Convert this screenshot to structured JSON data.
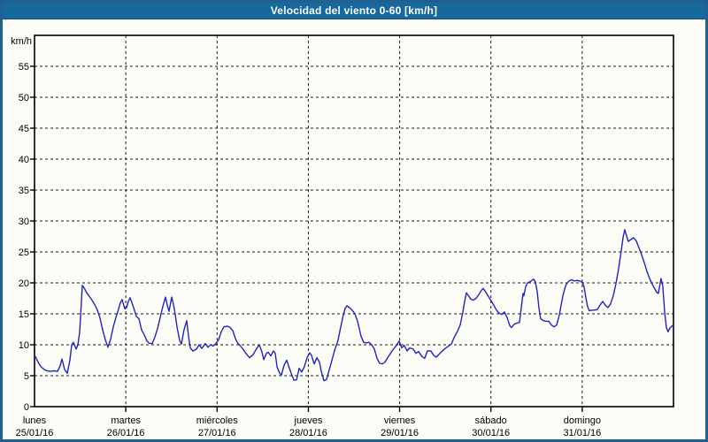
{
  "title_bar": {
    "title": "Velocidad del viento 0-60 [km/h]"
  },
  "colors": {
    "frame_border": "#20608f",
    "title_bar_bg": "#17689d",
    "background": "#fcfdf6",
    "grid": "#1a1a1a",
    "axis_box": "#000000",
    "line": "#2222c4"
  },
  "chart_data": {
    "type": "line",
    "title": "Velocidad del viento 0-60 [km/h]",
    "y_unit_label": "km/h",
    "ylabel": "km/h",
    "xlabel": "",
    "ylim": [
      0,
      60
    ],
    "y_ticks": [
      0,
      5,
      10,
      15,
      20,
      25,
      30,
      35,
      40,
      45,
      50,
      55
    ],
    "grid": "dashed",
    "legend": "none",
    "x_range_days": [
      0,
      7
    ],
    "x_days": [
      {
        "label": "lunes",
        "date": "25/01/16"
      },
      {
        "label": "martes",
        "date": "26/01/16"
      },
      {
        "label": "miércoles",
        "date": "27/01/16"
      },
      {
        "label": "jueves",
        "date": "28/01/16"
      },
      {
        "label": "viernes",
        "date": "29/01/16"
      },
      {
        "label": "sábado",
        "date": "30/01/16"
      },
      {
        "label": "domingo",
        "date": "31/01/16"
      }
    ],
    "series_name": "Velocidad del viento",
    "points": [
      [
        0.01,
        8.1
      ],
      [
        0.039,
        7.2
      ],
      [
        0.068,
        6.5
      ],
      [
        0.107,
        6.0
      ],
      [
        0.136,
        5.8
      ],
      [
        0.175,
        5.7
      ],
      [
        0.213,
        5.8
      ],
      [
        0.252,
        5.7
      ],
      [
        0.281,
        6.6
      ],
      [
        0.301,
        7.7
      ],
      [
        0.33,
        6.0
      ],
      [
        0.359,
        5.4
      ],
      [
        0.388,
        7.5
      ],
      [
        0.407,
        10.0
      ],
      [
        0.427,
        10.4
      ],
      [
        0.456,
        9.3
      ],
      [
        0.475,
        10.0
      ],
      [
        0.494,
        12.0
      ],
      [
        0.504,
        14.5
      ],
      [
        0.514,
        17.0
      ],
      [
        0.524,
        19.6
      ],
      [
        0.543,
        19.2
      ],
      [
        0.572,
        18.4
      ],
      [
        0.601,
        17.8
      ],
      [
        0.63,
        17.2
      ],
      [
        0.659,
        16.5
      ],
      [
        0.688,
        15.6
      ],
      [
        0.717,
        14.3
      ],
      [
        0.747,
        12.4
      ],
      [
        0.776,
        10.8
      ],
      [
        0.805,
        9.6
      ],
      [
        0.834,
        10.9
      ],
      [
        0.863,
        12.9
      ],
      [
        0.892,
        14.4
      ],
      [
        0.921,
        15.8
      ],
      [
        0.94,
        16.8
      ],
      [
        0.96,
        17.3
      ],
      [
        0.989,
        15.8
      ],
      [
        1.008,
        16.0
      ],
      [
        1.028,
        17.0
      ],
      [
        1.047,
        17.6
      ],
      [
        1.066,
        16.8
      ],
      [
        1.086,
        16.0
      ],
      [
        1.115,
        14.6
      ],
      [
        1.144,
        14.2
      ],
      [
        1.173,
        12.4
      ],
      [
        1.202,
        11.6
      ],
      [
        1.231,
        10.6
      ],
      [
        1.26,
        10.2
      ],
      [
        1.289,
        10.2
      ],
      [
        1.318,
        11.2
      ],
      [
        1.348,
        12.6
      ],
      [
        1.377,
        14.4
      ],
      [
        1.406,
        16.2
      ],
      [
        1.435,
        17.7
      ],
      [
        1.454,
        16.4
      ],
      [
        1.474,
        15.4
      ],
      [
        1.503,
        17.7
      ],
      [
        1.522,
        16.5
      ],
      [
        1.541,
        15.0
      ],
      [
        1.561,
        12.9
      ],
      [
        1.59,
        10.7
      ],
      [
        1.609,
        10.1
      ],
      [
        1.638,
        12.4
      ],
      [
        1.668,
        13.9
      ],
      [
        1.687,
        11.4
      ],
      [
        1.706,
        9.5
      ],
      [
        1.735,
        9.0
      ],
      [
        1.774,
        9.3
      ],
      [
        1.803,
        10.0
      ],
      [
        1.832,
        9.4
      ],
      [
        1.871,
        10.2
      ],
      [
        1.9,
        9.6
      ],
      [
        1.929,
        10.0
      ],
      [
        1.958,
        9.8
      ],
      [
        1.987,
        10.2
      ],
      [
        2.017,
        10.8
      ],
      [
        2.046,
        12.1
      ],
      [
        2.075,
        12.9
      ],
      [
        2.114,
        13.0
      ],
      [
        2.143,
        12.8
      ],
      [
        2.172,
        12.3
      ],
      [
        2.201,
        11.0
      ],
      [
        2.22,
        10.4
      ],
      [
        2.249,
        9.9
      ],
      [
        2.278,
        9.4
      ],
      [
        2.317,
        8.6
      ],
      [
        2.356,
        7.9
      ],
      [
        2.395,
        8.4
      ],
      [
        2.434,
        9.4
      ],
      [
        2.463,
        10.0
      ],
      [
        2.492,
        8.8
      ],
      [
        2.511,
        7.6
      ],
      [
        2.54,
        8.6
      ],
      [
        2.56,
        8.8
      ],
      [
        2.589,
        8.2
      ],
      [
        2.618,
        9.0
      ],
      [
        2.637,
        8.6
      ],
      [
        2.657,
        6.4
      ],
      [
        2.686,
        5.4
      ],
      [
        2.705,
        5.1
      ],
      [
        2.734,
        6.7
      ],
      [
        2.763,
        7.5
      ],
      [
        2.792,
        6.2
      ],
      [
        2.812,
        5.4
      ],
      [
        2.841,
        4.3
      ],
      [
        2.87,
        4.3
      ],
      [
        2.899,
        6.2
      ],
      [
        2.928,
        5.6
      ],
      [
        2.957,
        6.5
      ],
      [
        2.986,
        7.9
      ],
      [
        3.015,
        8.7
      ],
      [
        3.035,
        8.3
      ],
      [
        3.064,
        6.9
      ],
      [
        3.093,
        7.9
      ],
      [
        3.122,
        7.2
      ],
      [
        3.141,
        5.7
      ],
      [
        3.17,
        4.2
      ],
      [
        3.199,
        4.4
      ],
      [
        3.228,
        5.9
      ],
      [
        3.257,
        7.4
      ],
      [
        3.286,
        9.0
      ],
      [
        3.325,
        10.7
      ],
      [
        3.354,
        12.8
      ],
      [
        3.383,
        14.8
      ],
      [
        3.403,
        15.9
      ],
      [
        3.422,
        16.3
      ],
      [
        3.451,
        16.0
      ],
      [
        3.48,
        15.6
      ],
      [
        3.51,
        15.0
      ],
      [
        3.539,
        13.8
      ],
      [
        3.558,
        12.6
      ],
      [
        3.577,
        11.4
      ],
      [
        3.606,
        10.4
      ],
      [
        3.635,
        10.3
      ],
      [
        3.664,
        10.4
      ],
      [
        3.694,
        10.0
      ],
      [
        3.723,
        9.3
      ],
      [
        3.752,
        7.8
      ],
      [
        3.781,
        7.0
      ],
      [
        3.81,
        6.9
      ],
      [
        3.839,
        7.2
      ],
      [
        3.868,
        7.9
      ],
      [
        3.917,
        9.0
      ],
      [
        3.965,
        9.9
      ],
      [
        3.994,
        10.6
      ],
      [
        4.023,
        9.5
      ],
      [
        4.052,
        9.9
      ],
      [
        4.081,
        9.0
      ],
      [
        4.111,
        9.5
      ],
      [
        4.149,
        9.3
      ],
      [
        4.178,
        8.6
      ],
      [
        4.207,
        8.9
      ],
      [
        4.246,
        8.1
      ],
      [
        4.275,
        7.8
      ],
      [
        4.304,
        9.0
      ],
      [
        4.343,
        9.0
      ],
      [
        4.372,
        8.3
      ],
      [
        4.401,
        8.0
      ],
      [
        4.44,
        8.6
      ],
      [
        4.469,
        9.0
      ],
      [
        4.498,
        9.4
      ],
      [
        4.537,
        9.8
      ],
      [
        4.566,
        10.1
      ],
      [
        4.595,
        11.1
      ],
      [
        4.634,
        12.2
      ],
      [
        4.663,
        13.2
      ],
      [
        4.692,
        15.2
      ],
      [
        4.712,
        17.0
      ],
      [
        4.731,
        18.4
      ],
      [
        4.75,
        18.0
      ],
      [
        4.779,
        17.4
      ],
      [
        4.808,
        17.2
      ],
      [
        4.837,
        17.5
      ],
      [
        4.867,
        18.1
      ],
      [
        4.896,
        18.8
      ],
      [
        4.915,
        19.1
      ],
      [
        4.944,
        18.5
      ],
      [
        4.973,
        17.8
      ],
      [
        5.002,
        17.1
      ],
      [
        5.031,
        16.4
      ],
      [
        5.061,
        15.6
      ],
      [
        5.09,
        15.1
      ],
      [
        5.119,
        14.9
      ],
      [
        5.148,
        15.3
      ],
      [
        5.177,
        14.4
      ],
      [
        5.206,
        13.1
      ],
      [
        5.225,
        12.8
      ],
      [
        5.254,
        13.3
      ],
      [
        5.284,
        13.5
      ],
      [
        5.313,
        13.6
      ],
      [
        5.332,
        16.0
      ],
      [
        5.352,
        18.3
      ],
      [
        5.361,
        17.9
      ],
      [
        5.381,
        19.4
      ],
      [
        5.4,
        20.0
      ],
      [
        5.429,
        20.2
      ],
      [
        5.448,
        20.4
      ],
      [
        5.468,
        20.6
      ],
      [
        5.487,
        20.2
      ],
      [
        5.507,
        18.6
      ],
      [
        5.526,
        15.9
      ],
      [
        5.545,
        14.2
      ],
      [
        5.574,
        13.9
      ],
      [
        5.603,
        13.8
      ],
      [
        5.633,
        13.8
      ],
      [
        5.662,
        13.2
      ],
      [
        5.691,
        12.9
      ],
      [
        5.72,
        13.2
      ],
      [
        5.749,
        14.8
      ],
      [
        5.768,
        16.3
      ],
      [
        5.788,
        17.9
      ],
      [
        5.807,
        19.0
      ],
      [
        5.826,
        19.8
      ],
      [
        5.855,
        20.3
      ],
      [
        5.885,
        20.5
      ],
      [
        5.914,
        20.3
      ],
      [
        5.943,
        20.4
      ],
      [
        5.972,
        20.3
      ],
      [
        6.001,
        20.1
      ],
      [
        6.02,
        19.4
      ],
      [
        6.04,
        17.6
      ],
      [
        6.059,
        16.2
      ],
      [
        6.078,
        15.5
      ],
      [
        6.107,
        15.6
      ],
      [
        6.136,
        15.6
      ],
      [
        6.166,
        15.7
      ],
      [
        6.195,
        16.4
      ],
      [
        6.224,
        17.0
      ],
      [
        6.253,
        16.4
      ],
      [
        6.282,
        16.0
      ],
      [
        6.311,
        16.6
      ],
      [
        6.34,
        17.9
      ],
      [
        6.369,
        19.8
      ],
      [
        6.399,
        22.3
      ],
      [
        6.428,
        25.2
      ],
      [
        6.447,
        27.3
      ],
      [
        6.466,
        28.6
      ],
      [
        6.486,
        27.6
      ],
      [
        6.505,
        26.7
      ],
      [
        6.534,
        27.0
      ],
      [
        6.563,
        27.3
      ],
      [
        6.592,
        26.8
      ],
      [
        6.621,
        25.7
      ],
      [
        6.65,
        24.6
      ],
      [
        6.679,
        23.3
      ],
      [
        6.708,
        21.9
      ],
      [
        6.738,
        20.7
      ],
      [
        6.767,
        19.8
      ],
      [
        6.796,
        19.0
      ],
      [
        6.815,
        18.5
      ],
      [
        6.834,
        18.3
      ],
      [
        6.854,
        19.9
      ],
      [
        6.863,
        20.7
      ],
      [
        6.883,
        19.5
      ],
      [
        6.902,
        15.5
      ],
      [
        6.921,
        12.8
      ],
      [
        6.941,
        12.1
      ],
      [
        6.96,
        12.7
      ],
      [
        6.989,
        13.1
      ]
    ]
  }
}
